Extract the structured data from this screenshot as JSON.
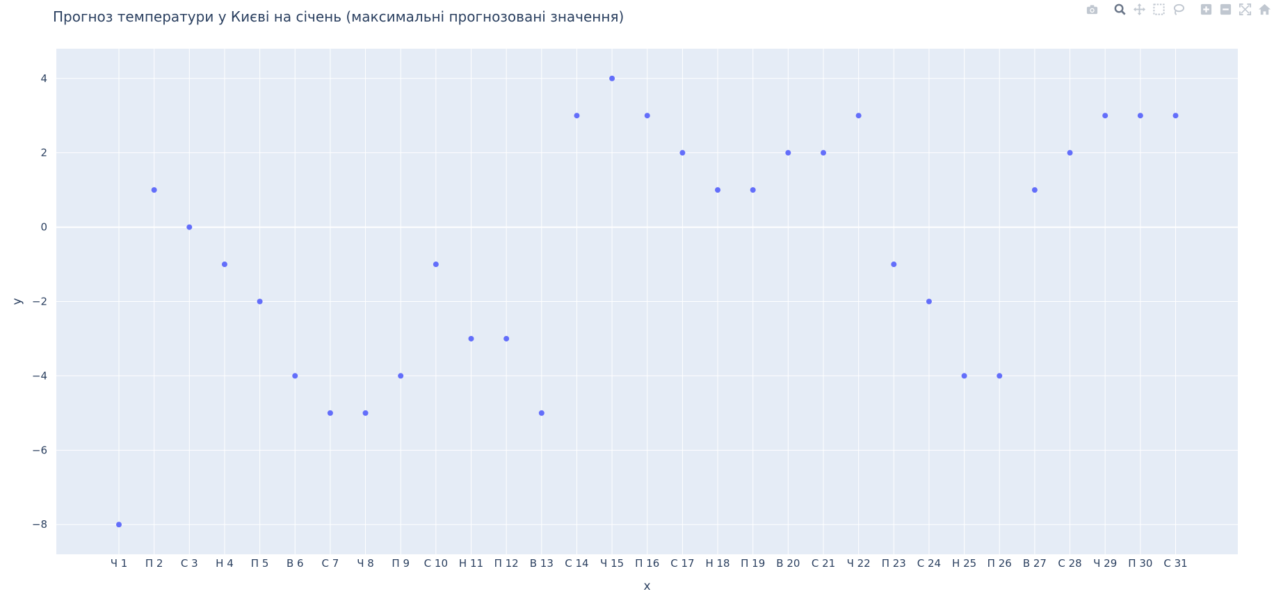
{
  "chart_title": "Прогноз температури у Києві на січень (максимальні прогнозовані значення)",
  "modebar": {
    "icons": [
      "camera-icon",
      "zoom-icon",
      "pan-icon",
      "box-select-icon",
      "lasso-icon",
      "zoom-in-icon",
      "zoom-out-icon",
      "autoscale-icon",
      "reset-axes-icon"
    ]
  },
  "colors": {
    "plot_bg": "#e5ecf6",
    "grid": "#ffffff",
    "marker": "#636efa",
    "text": "#2a3f5f",
    "modebar_icon": "#c0c7d0",
    "modebar_active": "#8a96a8"
  },
  "chart_data": {
    "type": "scatter",
    "title": "Прогноз температури у Києві на січень (максимальні прогнозовані значення)",
    "xlabel": "x",
    "ylabel": "y",
    "x": [
      "Ч 1",
      "П 2",
      "С 3",
      "Н 4",
      "П 5",
      "В 6",
      "С 7",
      "Ч 8",
      "П 9",
      "С 10",
      "Н 11",
      "П 12",
      "В 13",
      "С 14",
      "Ч 15",
      "П 16",
      "С 17",
      "Н 18",
      "П 19",
      "В 20",
      "С 21",
      "Ч 22",
      "П 23",
      "С 24",
      "Н 25",
      "П 26",
      "В 27",
      "С 28",
      "Ч 29",
      "П 30",
      "С 31"
    ],
    "y": [
      -8,
      1,
      0,
      -1,
      -2,
      -4,
      -5,
      -5,
      -4,
      -1,
      -3,
      -3,
      -5,
      3,
      4,
      3,
      2,
      1,
      1,
      2,
      2,
      3,
      -1,
      -2,
      -4,
      -4,
      1,
      2,
      3,
      3,
      3
    ],
    "ylim": [
      -8.8,
      4.8
    ],
    "yticks": [
      4,
      2,
      0,
      -2,
      -4,
      -6,
      -8
    ],
    "ytick_labels": [
      "4",
      "2",
      "0",
      "−2",
      "−4",
      "−6",
      "−8"
    ],
    "grid": true,
    "legend": "none"
  }
}
